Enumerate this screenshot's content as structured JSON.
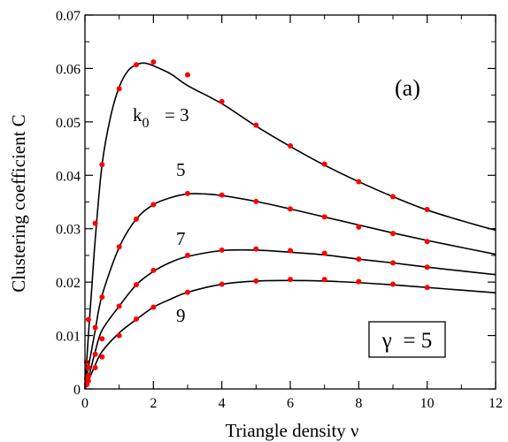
{
  "chart_data": {
    "type": "line",
    "xlabel": "Triangle density  ν",
    "ylabel": "Clustering  coefficient  C",
    "xlim": [
      0,
      12
    ],
    "ylim": [
      0,
      0.07
    ],
    "x_ticks": [
      "0",
      "2",
      "4",
      "6",
      "8",
      "10",
      "12"
    ],
    "y_ticks": [
      "0",
      "0.01",
      "0.02",
      "0.03",
      "0.04",
      "0.05",
      "0.06",
      "0.07"
    ],
    "panel_label": "(a)",
    "gamma_label": "γ  = 5",
    "grid": false,
    "series_style": {
      "line_color": "#000000",
      "marker_color": "#ff0000"
    },
    "series": [
      {
        "label": "3",
        "label_prefix": "k",
        "label_sub": "0",
        "label_suffix": "= 3",
        "curve": [
          [
            0,
            0
          ],
          [
            0.1,
            0.01
          ],
          [
            0.2,
            0.019
          ],
          [
            0.3,
            0.028
          ],
          [
            0.5,
            0.042
          ],
          [
            0.75,
            0.051
          ],
          [
            1.0,
            0.0565
          ],
          [
            1.25,
            0.0595
          ],
          [
            1.5,
            0.0607
          ],
          [
            1.75,
            0.061
          ],
          [
            2.0,
            0.0605
          ],
          [
            2.5,
            0.059
          ],
          [
            3.0,
            0.0568
          ],
          [
            4.0,
            0.0534
          ],
          [
            5.0,
            0.0492
          ],
          [
            6.0,
            0.0454
          ],
          [
            7.0,
            0.0419
          ],
          [
            8.0,
            0.0388
          ],
          [
            9.0,
            0.036
          ],
          [
            10.0,
            0.0335
          ],
          [
            11.0,
            0.0315
          ],
          [
            12.0,
            0.0297
          ]
        ],
        "points": [
          [
            0.05,
            0.005
          ],
          [
            0.1,
            0.013
          ],
          [
            0.3,
            0.031
          ],
          [
            0.5,
            0.042
          ],
          [
            1.0,
            0.0562
          ],
          [
            1.5,
            0.0607
          ],
          [
            2.0,
            0.0612
          ],
          [
            3.0,
            0.0588
          ],
          [
            4.0,
            0.0538
          ],
          [
            5.0,
            0.0494
          ],
          [
            6.0,
            0.0455
          ],
          [
            7.0,
            0.0421
          ],
          [
            8.0,
            0.0388
          ],
          [
            9.0,
            0.036
          ],
          [
            10.0,
            0.0336
          ]
        ]
      },
      {
        "label": "5",
        "curve": [
          [
            0,
            0
          ],
          [
            0.1,
            0.004
          ],
          [
            0.2,
            0.0075
          ],
          [
            0.3,
            0.011
          ],
          [
            0.5,
            0.0175
          ],
          [
            1.0,
            0.0265
          ],
          [
            1.5,
            0.0318
          ],
          [
            2.0,
            0.0345
          ],
          [
            2.5,
            0.0358
          ],
          [
            3.0,
            0.0365
          ],
          [
            3.5,
            0.0365
          ],
          [
            4.0,
            0.0362
          ],
          [
            5.0,
            0.0351
          ],
          [
            6.0,
            0.0337
          ],
          [
            7.0,
            0.0322
          ],
          [
            8.0,
            0.0307
          ],
          [
            9.0,
            0.0292
          ],
          [
            10.0,
            0.0278
          ],
          [
            11.0,
            0.0265
          ],
          [
            12.0,
            0.0252
          ]
        ],
        "points": [
          [
            0.05,
            0.002
          ],
          [
            0.1,
            0.004
          ],
          [
            0.3,
            0.0115
          ],
          [
            0.5,
            0.0172
          ],
          [
            1.0,
            0.0266
          ],
          [
            1.5,
            0.0318
          ],
          [
            2.0,
            0.0345
          ],
          [
            3.0,
            0.0366
          ],
          [
            4.0,
            0.0363
          ],
          [
            5.0,
            0.0351
          ],
          [
            6.0,
            0.0337
          ],
          [
            7.0,
            0.0322
          ],
          [
            8.0,
            0.0303
          ],
          [
            9.0,
            0.0291
          ],
          [
            10.0,
            0.0276
          ]
        ]
      },
      {
        "label": "7",
        "curve": [
          [
            0,
            0
          ],
          [
            0.1,
            0.002
          ],
          [
            0.2,
            0.0045
          ],
          [
            0.3,
            0.007
          ],
          [
            0.5,
            0.011
          ],
          [
            1.0,
            0.0155
          ],
          [
            1.5,
            0.0195
          ],
          [
            2.0,
            0.022
          ],
          [
            2.5,
            0.0237
          ],
          [
            3.0,
            0.0248
          ],
          [
            4.0,
            0.0259
          ],
          [
            5.0,
            0.026
          ],
          [
            6.0,
            0.0256
          ],
          [
            7.0,
            0.0251
          ],
          [
            8.0,
            0.0243
          ],
          [
            9.0,
            0.0236
          ],
          [
            10.0,
            0.0228
          ],
          [
            11.0,
            0.0221
          ],
          [
            12.0,
            0.0214
          ]
        ],
        "points": [
          [
            0.05,
            0.001
          ],
          [
            0.1,
            0.0025
          ],
          [
            0.3,
            0.0065
          ],
          [
            0.5,
            0.0094
          ],
          [
            1.0,
            0.0155
          ],
          [
            1.5,
            0.0195
          ],
          [
            2.0,
            0.0222
          ],
          [
            3.0,
            0.025
          ],
          [
            4.0,
            0.026
          ],
          [
            5.0,
            0.0262
          ],
          [
            6.0,
            0.0259
          ],
          [
            7.0,
            0.0254
          ],
          [
            8.0,
            0.0243
          ],
          [
            9.0,
            0.0236
          ],
          [
            10.0,
            0.0228
          ]
        ]
      },
      {
        "label": "9",
        "curve": [
          [
            0,
            0
          ],
          [
            0.1,
            0.0015
          ],
          [
            0.2,
            0.003
          ],
          [
            0.3,
            0.0045
          ],
          [
            0.5,
            0.007
          ],
          [
            1.0,
            0.0105
          ],
          [
            1.5,
            0.013
          ],
          [
            2.0,
            0.0153
          ],
          [
            2.5,
            0.0168
          ],
          [
            3.0,
            0.0181
          ],
          [
            4.0,
            0.0196
          ],
          [
            5.0,
            0.0202
          ],
          [
            6.0,
            0.0203
          ],
          [
            7.0,
            0.0202
          ],
          [
            8.0,
            0.0199
          ],
          [
            9.0,
            0.0195
          ],
          [
            10.0,
            0.019
          ],
          [
            11.0,
            0.0185
          ],
          [
            12.0,
            0.018
          ]
        ],
        "points": [
          [
            0.05,
            0.0008
          ],
          [
            0.1,
            0.0015
          ],
          [
            0.3,
            0.004
          ],
          [
            0.5,
            0.006
          ],
          [
            1.0,
            0.01
          ],
          [
            1.5,
            0.0131
          ],
          [
            2.0,
            0.0153
          ],
          [
            3.0,
            0.0181
          ],
          [
            4.0,
            0.0196
          ],
          [
            5.0,
            0.0202
          ],
          [
            6.0,
            0.0205
          ],
          [
            7.0,
            0.0205
          ],
          [
            8.0,
            0.0201
          ],
          [
            9.0,
            0.0196
          ],
          [
            10.0,
            0.019
          ]
        ]
      }
    ]
  }
}
